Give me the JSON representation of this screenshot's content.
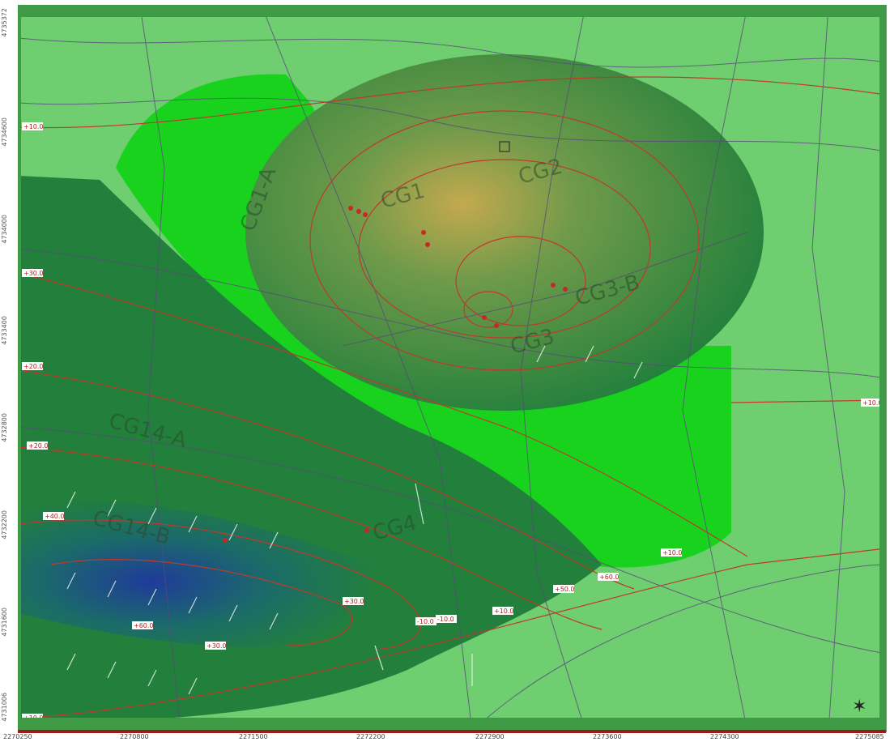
{
  "map": {
    "y_ticks": [
      "4735372",
      "4734600",
      "4734000",
      "4733400",
      "4732800",
      "4732200",
      "4731600",
      "4731006"
    ],
    "x_ticks": [
      "2270250",
      "2270800",
      "2271500",
      "2272200",
      "2272900",
      "2273600",
      "2274300",
      "2275085"
    ],
    "zone_labels": [
      "CG1",
      "CG2",
      "CG3",
      "CG1-A",
      "CG3-B",
      "CG14-A",
      "CG14-B",
      "CG4"
    ],
    "contour_labels": [
      "+10.0",
      "+10.0",
      "+10.0",
      "+10.0",
      "+30.0",
      "+20.0",
      "+20.0",
      "+40.0",
      "+60.0",
      "+30.0",
      "+10.0",
      "-10.0",
      "-10.0",
      "+30.0",
      "+50.0",
      "+60.0"
    ],
    "colors": {
      "background": "#6fce70",
      "bright_zone": "#19d21e",
      "dark_zone": "#22803c",
      "plume_center": "#c4a94e",
      "blue_core": "#1f3b9a",
      "contour": "#c0392b",
      "road": "#5a4a7a"
    },
    "icons": [
      "north-arrow-icon"
    ]
  }
}
